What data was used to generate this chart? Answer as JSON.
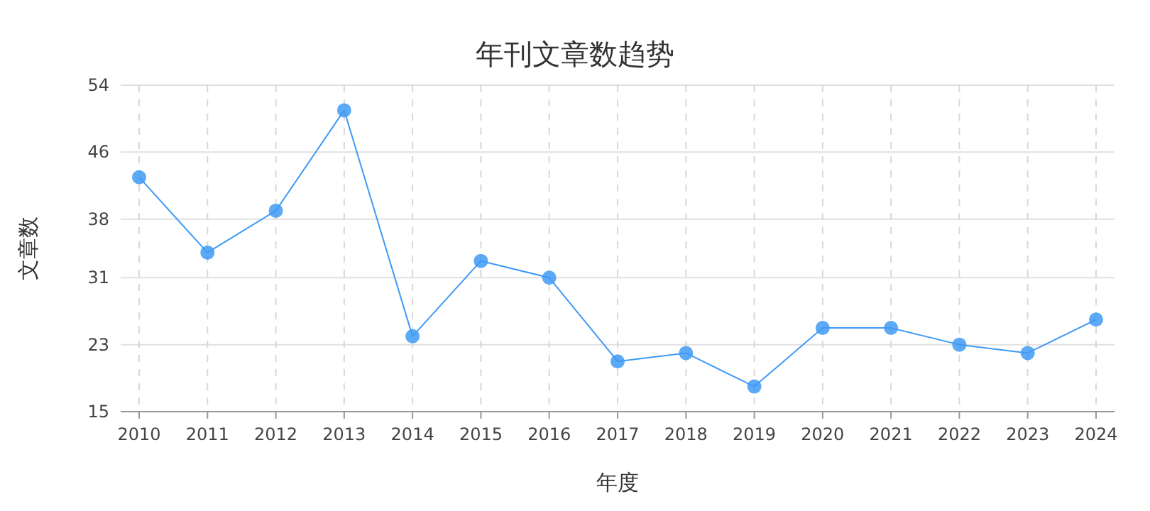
{
  "chart_data": {
    "type": "line",
    "title": "年刊文章数趋势",
    "xlabel": "年度",
    "ylabel": "文章数",
    "categories": [
      "2010",
      "2011",
      "2012",
      "2013",
      "2014",
      "2015",
      "2016",
      "2017",
      "2018",
      "2019",
      "2020",
      "2021",
      "2022",
      "2023",
      "2024"
    ],
    "series": [
      {
        "color": "#3f9af5",
        "values": [
          43,
          34,
          39,
          51,
          24,
          33,
          31,
          21,
          22,
          18,
          25,
          25,
          23,
          22,
          26
        ]
      }
    ],
    "ylim": [
      15,
      54
    ],
    "yticks": [
      15,
      23,
      31,
      38,
      46,
      54
    ],
    "grid": true,
    "marker": "circle",
    "line_style": "solid"
  }
}
